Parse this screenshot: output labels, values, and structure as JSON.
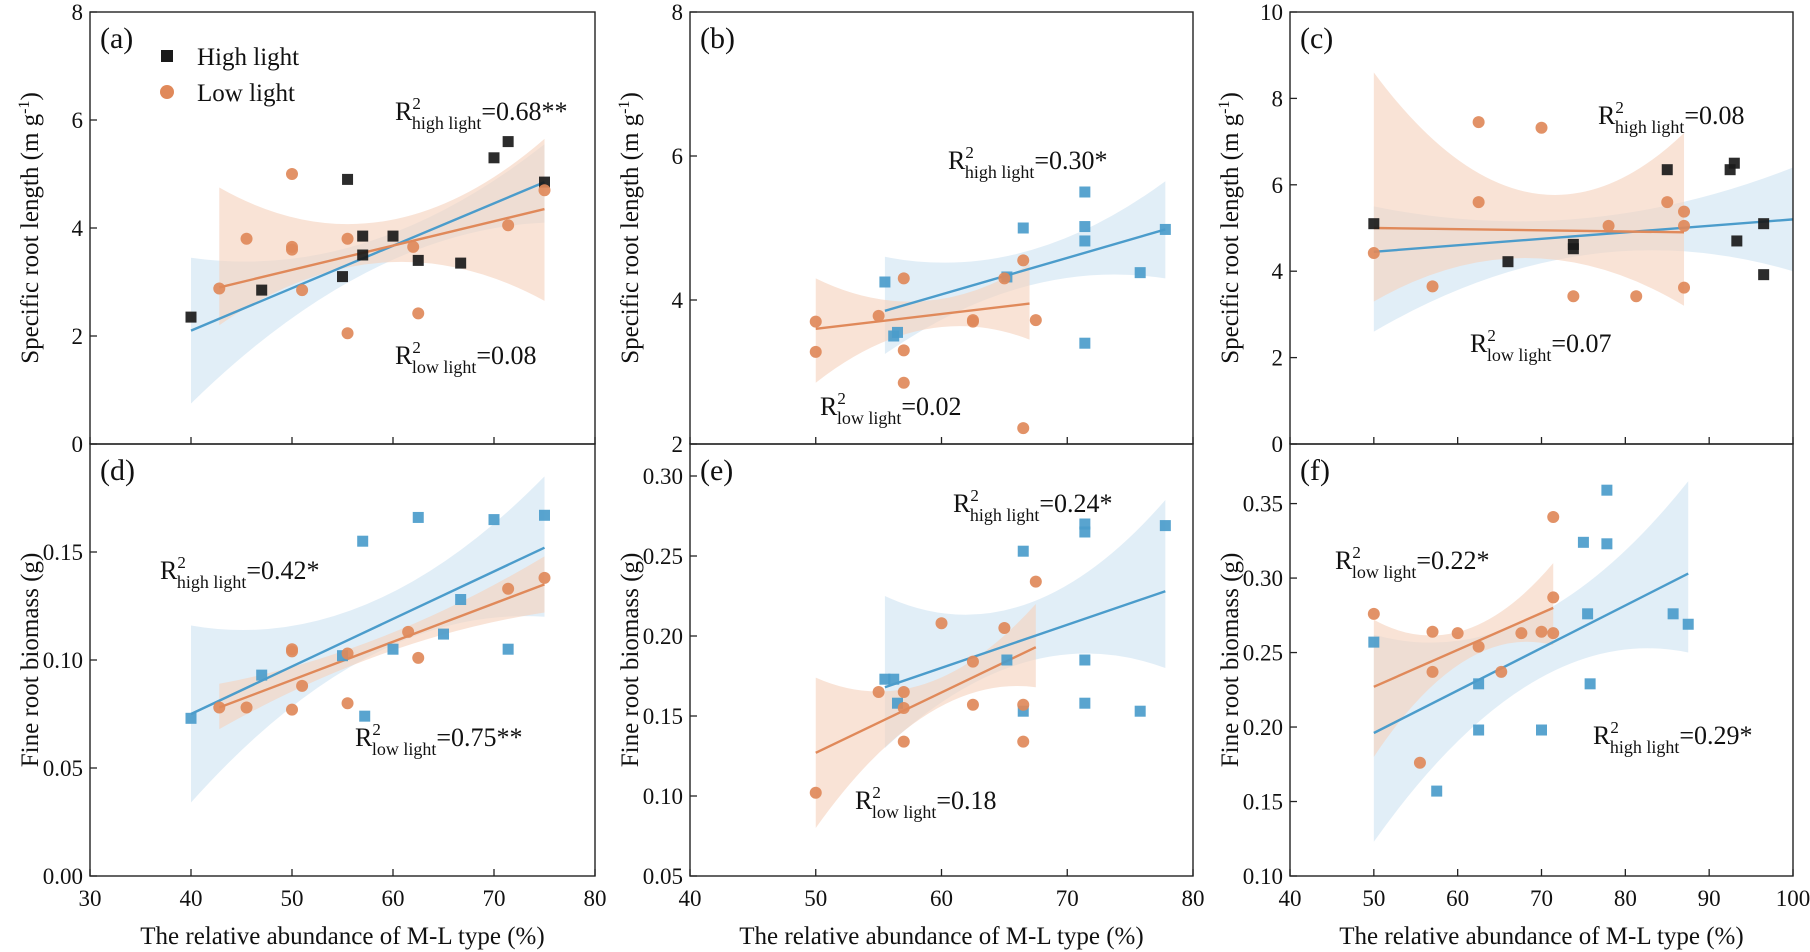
{
  "colors": {
    "high_light": "#4b9ccb",
    "high_light_marker": "#1a1a1a",
    "low_light": "#e0895a",
    "high_light_band": "#cfe3f2",
    "low_light_band": "#f5d2bd"
  },
  "legend": [
    {
      "key": "high",
      "label": "High light",
      "marker": "square"
    },
    {
      "key": "low",
      "label": "Low light",
      "marker": "circle"
    }
  ],
  "x_axis_label": "The relative abundance of M-L type (%)",
  "chart_data": [
    {
      "type": "scatter",
      "panel": "(a)",
      "ylabel": "Specific root length (m g",
      "ylabel_sup": "-1",
      "ylabel_end": ")",
      "xlim": [
        30,
        80
      ],
      "ylim": [
        0,
        8
      ],
      "xticks": [
        30,
        40,
        50,
        60,
        70,
        80
      ],
      "yticks": [
        0,
        2,
        4,
        6,
        8
      ],
      "show_x_ticklabels": false,
      "show_xlabel": false,
      "show_legend": true,
      "annotations": [
        {
          "series": "high",
          "pre": "R",
          "sup": "2",
          "sub": "high light",
          "post": "=0.68**",
          "anchor": "top-right"
        },
        {
          "series": "low",
          "pre": "R",
          "sup": "2",
          "sub": "low light",
          "post": "=0.08",
          "anchor": "bottom-right"
        }
      ],
      "series": [
        {
          "key": "high",
          "name": "High light",
          "marker_color": "#1a1a1a",
          "x": [
            40,
            47,
            55,
            57,
            57,
            60,
            62.5,
            66.7,
            70,
            71.4,
            75,
            55.5
          ],
          "y": [
            2.35,
            2.85,
            3.1,
            3.5,
            3.85,
            3.85,
            3.4,
            3.35,
            5.3,
            5.6,
            4.85,
            4.9
          ],
          "fit": [
            [
              40,
              2.1
            ],
            [
              75,
              4.85
            ]
          ],
          "band_x": [
            40,
            75
          ],
          "band_lo": [
            0.75,
            4.1
          ],
          "band_hi": [
            3.45,
            5.55
          ]
        },
        {
          "key": "low",
          "name": "Low light",
          "x": [
            42.8,
            45.5,
            50,
            50,
            50,
            51,
            55.5,
            55.5,
            62,
            62.5,
            71.4,
            75
          ],
          "y": [
            2.88,
            3.8,
            5.0,
            3.6,
            3.65,
            2.85,
            3.8,
            2.05,
            3.65,
            2.42,
            4.05,
            4.7
          ],
          "fit": [
            [
              42.8,
              2.9
            ],
            [
              75,
              4.35
            ]
          ],
          "band_x": [
            42.8,
            75
          ],
          "band_lo": [
            2.2,
            2.65
          ],
          "band_hi": [
            4.75,
            5.65
          ]
        }
      ]
    },
    {
      "type": "scatter",
      "panel": "(b)",
      "ylabel": "Specific root length (m g",
      "ylabel_sup": "-1",
      "ylabel_end": ")",
      "xlim": [
        40,
        80
      ],
      "ylim": [
        2,
        8
      ],
      "xticks": [
        40,
        50,
        60,
        70,
        80
      ],
      "yticks": [
        2,
        4,
        6,
        8
      ],
      "show_x_ticklabels": false,
      "show_xlabel": false,
      "show_legend": false,
      "annotations": [
        {
          "series": "high",
          "pre": "R",
          "sup": "2",
          "sub": "high light",
          "post": "=0.30*",
          "anchor": "mid-right"
        },
        {
          "series": "low",
          "pre": "R",
          "sup": "2",
          "sub": "low light",
          "post": "=0.02",
          "anchor": "bottom-left"
        }
      ],
      "series": [
        {
          "key": "high",
          "name": "High light",
          "x": [
            55.5,
            56.2,
            56.5,
            65.2,
            66.5,
            71.4,
            71.4,
            71.4,
            71.4,
            75.8,
            77.8
          ],
          "y": [
            4.25,
            3.5,
            3.55,
            4.32,
            5.0,
            5.5,
            5.02,
            4.82,
            3.4,
            4.38,
            4.98
          ],
          "fit": [
            [
              55.5,
              3.85
            ],
            [
              77.8,
              4.98
            ]
          ],
          "band_x": [
            55.5,
            77.8
          ],
          "band_lo": [
            3.25,
            4.3
          ],
          "band_hi": [
            4.6,
            5.65
          ]
        },
        {
          "key": "low",
          "name": "Low light",
          "x": [
            50,
            50,
            55,
            57,
            57,
            57,
            62.5,
            62.5,
            65,
            66.5,
            66.5,
            67.5
          ],
          "y": [
            3.7,
            3.28,
            3.78,
            4.3,
            3.3,
            2.85,
            3.7,
            3.72,
            4.3,
            4.55,
            2.22,
            3.72
          ],
          "fit": [
            [
              50,
              3.6
            ],
            [
              67,
              3.95
            ]
          ],
          "band_x": [
            50,
            67
          ],
          "band_lo": [
            2.85,
            3.45
          ],
          "band_hi": [
            4.3,
            4.5
          ]
        }
      ]
    },
    {
      "type": "scatter",
      "panel": "(c)",
      "ylabel": "Specific root length (m g",
      "ylabel_sup": "-1",
      "ylabel_end": ")",
      "xlim": [
        40,
        100
      ],
      "ylim": [
        0,
        10
      ],
      "xticks": [
        40,
        50,
        60,
        70,
        80,
        90,
        100
      ],
      "yticks": [
        0,
        2,
        4,
        6,
        8,
        10
      ],
      "show_x_ticklabels": false,
      "show_xlabel": false,
      "show_legend": false,
      "annotations": [
        {
          "series": "high",
          "pre": "R",
          "sup": "2",
          "sub": "high light",
          "post": "=0.08",
          "anchor": "top-right"
        },
        {
          "series": "low",
          "pre": "R",
          "sup": "2",
          "sub": "low light",
          "post": "=0.07",
          "anchor": "bottom-mid"
        }
      ],
      "series": [
        {
          "key": "high",
          "name": "High light",
          "marker_color": "#1a1a1a",
          "x": [
            50,
            66,
            73.8,
            73.8,
            85,
            92.5,
            93,
            93.3,
            96.5,
            96.5
          ],
          "y": [
            5.1,
            4.22,
            4.52,
            4.62,
            6.35,
            6.35,
            6.5,
            4.7,
            5.1,
            3.92
          ],
          "fit": [
            [
              50,
              4.45
            ],
            [
              100,
              5.2
            ]
          ],
          "band_x": [
            50,
            100
          ],
          "band_lo": [
            2.6,
            4.0
          ],
          "band_hi": [
            5.5,
            6.4
          ]
        },
        {
          "key": "low",
          "name": "Low light",
          "x": [
            50,
            57,
            62.5,
            62.5,
            70,
            73.8,
            78,
            81.3,
            85,
            87,
            87,
            87
          ],
          "y": [
            4.42,
            3.65,
            7.45,
            5.6,
            7.32,
            3.42,
            5.05,
            3.42,
            5.6,
            5.38,
            5.05,
            3.62
          ],
          "fit": [
            [
              50,
              5.0
            ],
            [
              87,
              4.9
            ]
          ],
          "band_x": [
            50,
            87
          ],
          "band_lo": [
            3.3,
            3.2
          ],
          "band_hi": [
            8.6,
            7.2
          ]
        }
      ]
    },
    {
      "type": "scatter",
      "panel": "(d)",
      "ylabel": "Fine root biomass (g)",
      "xlim": [
        30,
        80
      ],
      "ylim": [
        0,
        0.2
      ],
      "xticks": [
        30,
        40,
        50,
        60,
        70,
        80
      ],
      "yticks": [
        0.0,
        0.05,
        0.1,
        0.15
      ],
      "ytick_labels": [
        "0.00",
        "0.05",
        "0.10",
        "0.15"
      ],
      "show_x_ticklabels": true,
      "show_xlabel": true,
      "show_legend": false,
      "annotations": [
        {
          "series": "high",
          "pre": "R",
          "sup": "2",
          "sub": "high light",
          "post": "=0.42*",
          "anchor": "mid-left"
        },
        {
          "series": "low",
          "pre": "R",
          "sup": "2",
          "sub": "low light",
          "post": "=0.75**",
          "anchor": "bottom-right"
        }
      ],
      "series": [
        {
          "key": "high",
          "name": "High light",
          "x": [
            40,
            47,
            55,
            57,
            57.2,
            60,
            62.5,
            65,
            66.7,
            70,
            71.4,
            75
          ],
          "y": [
            0.073,
            0.093,
            0.102,
            0.155,
            0.074,
            0.105,
            0.166,
            0.112,
            0.128,
            0.165,
            0.105,
            0.167
          ],
          "fit": [
            [
              40,
              0.075
            ],
            [
              75,
              0.152
            ]
          ],
          "band_x": [
            40,
            75
          ],
          "band_lo": [
            0.034,
            0.12
          ],
          "band_hi": [
            0.116,
            0.185
          ]
        },
        {
          "key": "low",
          "name": "Low light",
          "x": [
            42.8,
            45.5,
            50,
            50,
            50,
            51,
            55.5,
            55.5,
            61.5,
            62.5,
            71.4,
            75
          ],
          "y": [
            0.078,
            0.078,
            0.105,
            0.104,
            0.077,
            0.088,
            0.103,
            0.08,
            0.113,
            0.101,
            0.133,
            0.138
          ],
          "fit": [
            [
              42.8,
              0.078
            ],
            [
              75,
              0.135
            ]
          ],
          "band_x": [
            42.8,
            75
          ],
          "band_lo": [
            0.068,
            0.122
          ],
          "band_hi": [
            0.089,
            0.148
          ]
        }
      ]
    },
    {
      "type": "scatter",
      "panel": "(e)",
      "ylabel": "Fine root biomass (g)",
      "xlim": [
        40,
        80
      ],
      "ylim": [
        0.05,
        0.32
      ],
      "xticks": [
        40,
        50,
        60,
        70,
        80
      ],
      "yticks": [
        0.05,
        0.1,
        0.15,
        0.2,
        0.25,
        0.3
      ],
      "ytick_labels": [
        "0.05",
        "0.10",
        "0.15",
        "0.20",
        "0.25",
        "0.30"
      ],
      "show_x_ticklabels": true,
      "show_xlabel": true,
      "show_legend": false,
      "annotations": [
        {
          "series": "high",
          "pre": "R",
          "sup": "2",
          "sub": "high light",
          "post": "=0.24*",
          "anchor": "top-right"
        },
        {
          "series": "low",
          "pre": "R",
          "sup": "2",
          "sub": "low light",
          "post": "=0.18",
          "anchor": "bottom-mid"
        }
      ],
      "series": [
        {
          "key": "high",
          "name": "High light",
          "x": [
            55.5,
            56.2,
            56.5,
            65.2,
            66.5,
            66.5,
            71.4,
            71.4,
            71.4,
            71.4,
            75.8,
            77.8
          ],
          "y": [
            0.173,
            0.173,
            0.158,
            0.185,
            0.253,
            0.153,
            0.27,
            0.265,
            0.185,
            0.158,
            0.153,
            0.269
          ],
          "fit": [
            [
              55.5,
              0.168
            ],
            [
              77.8,
              0.228
            ]
          ],
          "band_x": [
            55.5,
            77.8
          ],
          "band_lo": [
            0.13,
            0.18
          ],
          "band_hi": [
            0.225,
            0.285
          ]
        },
        {
          "key": "low",
          "name": "Low light",
          "x": [
            50,
            55,
            57,
            57,
            57,
            60,
            62.5,
            62.5,
            65,
            66.5,
            66.5,
            67.5
          ],
          "y": [
            0.102,
            0.165,
            0.165,
            0.155,
            0.134,
            0.208,
            0.157,
            0.184,
            0.205,
            0.157,
            0.134,
            0.234
          ],
          "fit": [
            [
              50,
              0.127
            ],
            [
              67.5,
              0.193
            ]
          ],
          "band_x": [
            50,
            67.5
          ],
          "band_lo": [
            0.08,
            0.168
          ],
          "band_hi": [
            0.174,
            0.22
          ]
        }
      ]
    },
    {
      "type": "scatter",
      "panel": "(f)",
      "ylabel": "Fine root biomass (g)",
      "xlim": [
        40,
        100
      ],
      "ylim": [
        0.1,
        0.39
      ],
      "xticks": [
        40,
        50,
        60,
        70,
        80,
        90,
        100
      ],
      "yticks": [
        0.1,
        0.15,
        0.2,
        0.25,
        0.3,
        0.35
      ],
      "ytick_labels": [
        "0.10",
        "0.15",
        "0.20",
        "0.25",
        "0.30",
        "0.35"
      ],
      "show_x_ticklabels": true,
      "show_xlabel": true,
      "show_legend": false,
      "annotations": [
        {
          "series": "low",
          "pre": "R",
          "sup": "2",
          "sub": "low light",
          "post": "=0.22*",
          "anchor": "top-left"
        },
        {
          "series": "high",
          "pre": "R",
          "sup": "2",
          "sub": "high light",
          "post": "=0.29*",
          "anchor": "bottom-right"
        }
      ],
      "series": [
        {
          "key": "high",
          "name": "High light",
          "x": [
            50,
            57.5,
            62.5,
            62.5,
            70,
            75,
            75.5,
            75.8,
            77.8,
            77.8,
            85.7,
            87.5
          ],
          "y": [
            0.257,
            0.157,
            0.229,
            0.198,
            0.198,
            0.324,
            0.276,
            0.229,
            0.359,
            0.323,
            0.276,
            0.269
          ],
          "fit": [
            [
              50,
              0.196
            ],
            [
              87.5,
              0.303
            ]
          ],
          "band_x": [
            50,
            87.5
          ],
          "band_lo": [
            0.123,
            0.25
          ],
          "band_hi": [
            0.262,
            0.365
          ]
        },
        {
          "key": "low",
          "name": "Low light",
          "x": [
            50,
            55.5,
            57,
            57,
            60,
            62.5,
            65.2,
            67.6,
            70,
            71.4,
            71.4,
            71.4
          ],
          "y": [
            0.276,
            0.176,
            0.264,
            0.237,
            0.263,
            0.254,
            0.237,
            0.263,
            0.264,
            0.341,
            0.287,
            0.263
          ],
          "fit": [
            [
              50,
              0.227
            ],
            [
              71.4,
              0.28
            ]
          ],
          "band_x": [
            50,
            71.4
          ],
          "band_lo": [
            0.18,
            0.255
          ],
          "band_hi": [
            0.272,
            0.31
          ]
        }
      ]
    }
  ]
}
